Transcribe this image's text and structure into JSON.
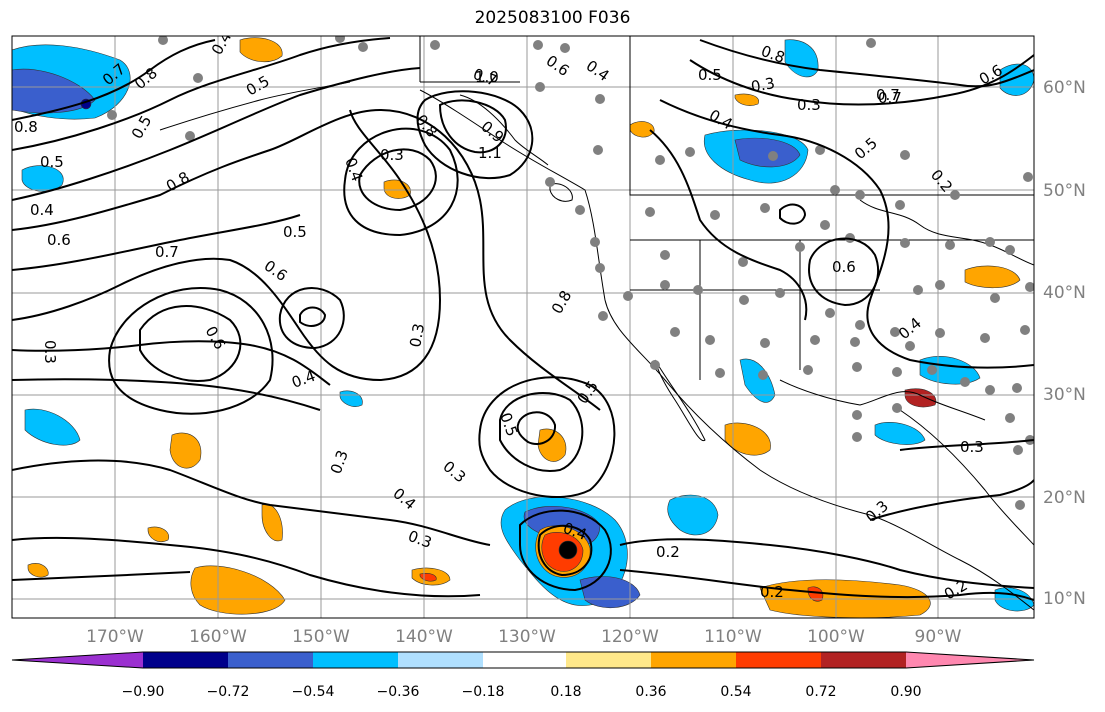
{
  "title": "2025083100 F036",
  "latitude_labels": [
    "60°N",
    "50°N",
    "40°N",
    "30°N",
    "20°N",
    "10°N"
  ],
  "longitude_labels": [
    "170°W",
    "160°W",
    "150°W",
    "140°W",
    "130°W",
    "120°W",
    "110°W",
    "100°W",
    "90°W"
  ],
  "colorbar": {
    "tick_labels": [
      "−0.90",
      "−0.72",
      "−0.54",
      "−0.36",
      "−0.18",
      "0.18",
      "0.36",
      "0.54",
      "0.72",
      "0.90"
    ],
    "colors": [
      "#9b30d0",
      "#00008b",
      "#3a5fcd",
      "#00bfff",
      "#b0e0ff",
      "#ffffff",
      "#ffe88a",
      "#ffa500",
      "#ff3c00",
      "#b22222",
      "#ff88b0"
    ]
  },
  "contour_labels": [
    "0.7",
    "0.8",
    "0.5",
    "0.5",
    "0.4",
    "0.8",
    "0.5",
    "0.4",
    "0.6",
    "0.8",
    "0.7",
    "0.6",
    "0.5",
    "0.3",
    "0.4",
    "0.7",
    "0.8",
    "0.9",
    "0.6",
    "0.4",
    "0.5",
    "0.3",
    "0.7",
    "0.4",
    "0.8",
    "0.5",
    "0.6",
    "0.2",
    "0.3",
    "0.6",
    "0.4",
    "0.3",
    "0.5",
    "0.3",
    "0.4",
    "0.3",
    "0.6",
    "0.3",
    "0.3",
    "0.8",
    "0.5",
    "0.4",
    "0.2",
    "0.2",
    "0.2",
    "0.3",
    "0.3",
    "0.4",
    "0.7",
    "1.0",
    "1.1"
  ]
}
